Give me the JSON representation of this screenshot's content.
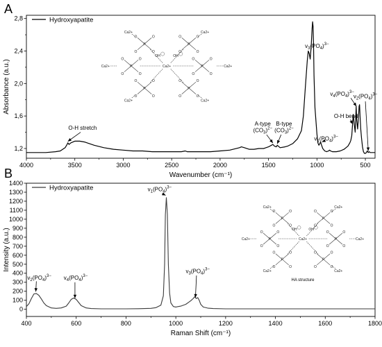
{
  "chart_data": [
    {
      "type": "line",
      "panel_label": "A",
      "xlabel": "Wavenumber (cm⁻¹)",
      "ylabel": "Absorbance (a.u.)",
      "xlim": [
        4000,
        400
      ],
      "ylim": [
        1.08,
        2.84
      ],
      "x_reversed": true,
      "xticks": [
        4000,
        3500,
        3000,
        2500,
        2000,
        1500,
        1000,
        500
      ],
      "xtick_labels": [
        "4000",
        "3500",
        "3000",
        "2500",
        "2000",
        "1500",
        "1000",
        "500"
      ],
      "yticks": [
        1.2,
        1.6,
        2.0,
        2.4,
        2.8
      ],
      "ytick_labels": [
        "1,2",
        "1,6",
        "2,0",
        "2,4",
        "2,8"
      ],
      "legend": {
        "position": "top-left",
        "entries": [
          "Hydroxyapatite"
        ]
      },
      "series": [
        {
          "name": "Hydroxyapatite",
          "color": "#000000",
          "x": [
            4000,
            3800,
            3700,
            3650,
            3600,
            3580,
            3572,
            3560,
            3540,
            3500,
            3450,
            3400,
            3300,
            3200,
            3100,
            3000,
            2900,
            2800,
            2700,
            2600,
            2500,
            2400,
            2360,
            2340,
            2300,
            2200,
            2100,
            2000,
            1900,
            1800,
            1780,
            1750,
            1700,
            1650,
            1600,
            1550,
            1500,
            1470,
            1455,
            1440,
            1420,
            1410,
            1380,
            1330,
            1300,
            1250,
            1200,
            1160,
            1140,
            1120,
            1100,
            1090,
            1080,
            1070,
            1060,
            1050,
            1045,
            1040,
            1035,
            1030,
            1020,
            1000,
            990,
            980,
            970,
            962,
            955,
            940,
            920,
            900,
            880,
            870,
            860,
            840,
            800,
            760,
            720,
            700,
            680,
            660,
            650,
            640,
            632,
            625,
            615,
            605,
            600,
            595,
            590,
            580,
            575,
            570,
            565,
            560,
            555,
            548,
            540,
            530,
            520,
            510,
            500,
            490,
            480,
            470,
            460,
            450,
            440,
            420,
            400
          ],
          "y": [
            1.15,
            1.15,
            1.16,
            1.17,
            1.21,
            1.25,
            1.27,
            1.25,
            1.27,
            1.29,
            1.29,
            1.28,
            1.24,
            1.21,
            1.19,
            1.18,
            1.17,
            1.17,
            1.16,
            1.16,
            1.16,
            1.16,
            1.17,
            1.16,
            1.16,
            1.16,
            1.16,
            1.17,
            1.18,
            1.21,
            1.22,
            1.21,
            1.19,
            1.19,
            1.2,
            1.2,
            1.22,
            1.24,
            1.25,
            1.23,
            1.22,
            1.24,
            1.21,
            1.22,
            1.23,
            1.26,
            1.32,
            1.42,
            1.6,
            1.95,
            2.28,
            2.4,
            2.37,
            2.3,
            2.45,
            2.68,
            2.76,
            2.7,
            2.45,
            2.1,
            1.7,
            1.38,
            1.27,
            1.24,
            1.26,
            1.28,
            1.25,
            1.2,
            1.17,
            1.16,
            1.17,
            1.18,
            1.17,
            1.16,
            1.16,
            1.17,
            1.19,
            1.21,
            1.23,
            1.27,
            1.3,
            1.36,
            1.5,
            1.62,
            1.5,
            1.4,
            1.55,
            1.72,
            1.56,
            1.44,
            1.52,
            1.6,
            1.72,
            1.74,
            1.6,
            1.44,
            1.33,
            1.22,
            1.16,
            1.14,
            1.14,
            1.15,
            1.17,
            1.15,
            1.16,
            1.15,
            1.15,
            1.15,
            1.15
          ]
        }
      ],
      "annotations": [
        {
          "text": "O-H stretch",
          "target_x": 3572,
          "target_y": 1.27
        },
        {
          "text": "A-type",
          "text2": "(CO3)2−",
          "target_x": 1455,
          "target_y": 1.25
        },
        {
          "text": "B-type",
          "text2": "(CO3)2−",
          "target_x": 1410,
          "target_y": 1.24
        },
        {
          "text": "v3(PO4)3−",
          "target_x": 1045,
          "target_y": 2.5
        },
        {
          "text": "v1(PO4)3−",
          "target_x": 962,
          "target_y": 1.28
        },
        {
          "text": "O-H bend",
          "target_x": 632,
          "target_y": 1.5
        },
        {
          "text": "v4(PO4)3−",
          "target_x": 600,
          "target_y": 1.72
        },
        {
          "text": "v2(PO4)3−",
          "target_x": 470,
          "target_y": 1.17
        }
      ]
    },
    {
      "type": "line",
      "panel_label": "B",
      "xlabel": "Raman Shift (cm⁻¹)",
      "ylabel": "Intensity (a.u.)",
      "xlim": [
        400,
        1800
      ],
      "ylim": [
        -80,
        1400
      ],
      "xticks": [
        400,
        600,
        800,
        1000,
        1200,
        1400,
        1600,
        1800
      ],
      "xtick_labels": [
        "400",
        "600",
        "800",
        "1000",
        "1200",
        "1400",
        "1600",
        "1800"
      ],
      "yticks": [
        0,
        100,
        200,
        300,
        400,
        500,
        600,
        700,
        800,
        900,
        1000,
        1100,
        1200,
        1300,
        1400
      ],
      "ytick_labels": [
        "0",
        "100",
        "200",
        "300",
        "400",
        "500",
        "600",
        "700",
        "800",
        "900",
        "1000",
        "1100",
        "1200",
        "1300",
        "1400"
      ],
      "legend": {
        "position": "top-left",
        "entries": [
          "Hydroxyapatite"
        ]
      },
      "series": [
        {
          "name": "Hydroxyapatite",
          "color": "#000000",
          "x": [
            400,
            410,
            420,
            430,
            440,
            450,
            460,
            470,
            480,
            500,
            520,
            540,
            560,
            570,
            580,
            590,
            600,
            610,
            620,
            640,
            660,
            700,
            750,
            800,
            850,
            900,
            920,
            940,
            950,
            955,
            958,
            962,
            966,
            970,
            975,
            980,
            990,
            1000,
            1020,
            1040,
            1050,
            1060,
            1070,
            1076,
            1082,
            1088,
            1094,
            1100,
            1110,
            1130,
            1150,
            1200,
            1300,
            1400,
            1500,
            1600,
            1700,
            1800
          ],
          "y": [
            30,
            60,
            120,
            170,
            175,
            155,
            115,
            70,
            40,
            15,
            10,
            15,
            35,
            70,
            110,
            125,
            110,
            75,
            40,
            15,
            8,
            5,
            5,
            5,
            6,
            10,
            18,
            45,
            150,
            500,
            1050,
            1240,
            1050,
            500,
            180,
            70,
            30,
            25,
            35,
            55,
            75,
            95,
            120,
            140,
            120,
            130,
            100,
            55,
            25,
            12,
            8,
            5,
            5,
            5,
            5,
            5,
            5,
            5
          ]
        }
      ],
      "annotations": [
        {
          "text": "v2(PO4)3−",
          "target_x": 435,
          "target_y": 180
        },
        {
          "text": "v4(PO4)3−",
          "target_x": 595,
          "target_y": 130
        },
        {
          "text": "v1(PO4)3−",
          "target_x": 962,
          "target_y": 1250
        },
        {
          "text": "v3(PO4)3−",
          "target_x": 1076,
          "target_y": 145
        }
      ],
      "inset_caption": "HA structure"
    }
  ],
  "molecule": {
    "center": "Ca2+",
    "hydroxyl": "OH",
    "oxygen": "O",
    "phosphorus": "P",
    "calcium": "Ca2+"
  }
}
